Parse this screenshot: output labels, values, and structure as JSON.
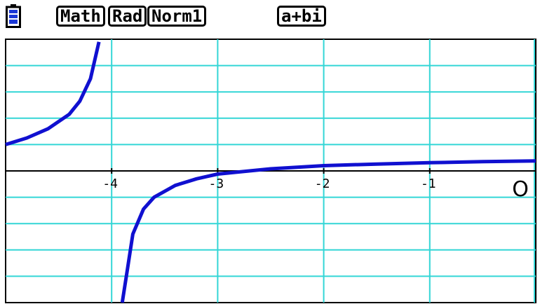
{
  "status_bar": {
    "battery_icon": "battery-icon",
    "mode_math": "Math",
    "angle_unit": "Rad",
    "display_format": "Norm1",
    "complex_mode": "a+bi"
  },
  "colors": {
    "grid": "#33d6d6",
    "axis": "#000000",
    "curve": "#1010d0",
    "battery": "#1a37d6"
  },
  "chart_data": {
    "type": "line",
    "grid": true,
    "xlim": [
      -5.0,
      0.0
    ],
    "ylim": [
      -5.0,
      5.0
    ],
    "x_ticks": [
      -4,
      -3,
      -2,
      -1
    ],
    "x_tick_labels": [
      "-4",
      "-3",
      "-2",
      "-1"
    ],
    "origin_label": "O",
    "series": [
      {
        "segments": [
          [
            [
              -5.0,
              1.0
            ],
            [
              -4.8,
              1.25
            ],
            [
              -4.6,
              1.6
            ],
            [
              -4.4,
              2.15
            ],
            [
              -4.3,
              2.65
            ],
            [
              -4.2,
              3.5
            ],
            [
              -4.12,
              4.9
            ]
          ],
          [
            [
              -3.9,
              -5.0
            ],
            [
              -3.85,
              -3.7
            ],
            [
              -3.8,
              -2.4
            ],
            [
              -3.7,
              -1.45
            ],
            [
              -3.6,
              -1.0
            ],
            [
              -3.4,
              -0.55
            ],
            [
              -3.2,
              -0.3
            ],
            [
              -3.0,
              -0.12
            ],
            [
              -2.5,
              0.08
            ],
            [
              -2.0,
              0.2
            ],
            [
              -1.5,
              0.26
            ],
            [
              -1.0,
              0.31
            ],
            [
              -0.5,
              0.35
            ],
            [
              0.0,
              0.38
            ]
          ]
        ]
      }
    ]
  }
}
